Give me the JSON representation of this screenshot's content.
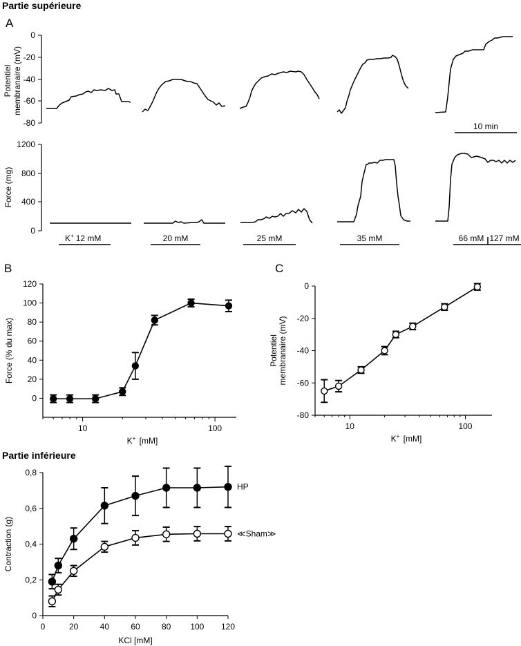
{
  "section_top": "Partie supérieure",
  "section_bottom": "Partie inférieure",
  "panel_labels": {
    "A": "A",
    "B": "B",
    "C": "C"
  },
  "panelA": {
    "vm_ylabel_line1": "Potentiel",
    "vm_ylabel_line2": "membranaire (mV)",
    "vm_ticks": [
      "0",
      "-20",
      "-40",
      "-60",
      "-80"
    ],
    "force_ylabel": "Force (mg)",
    "force_ticks": [
      "1200",
      "800",
      "400",
      "0"
    ],
    "scale_label": "10 min",
    "k_prefix": "K",
    "k_sup": "+",
    "conditions": [
      "12 mM",
      "20 mM",
      "25 mM",
      "35 mM",
      "66 mM",
      "127 mM"
    ]
  },
  "chart_data": [
    {
      "type": "line",
      "panel": "B",
      "ylabel": "Force (% du max)",
      "xlabel": "K+ [mM]",
      "xscale": "log",
      "xlim": [
        5,
        145
      ],
      "ylim": [
        -20,
        120
      ],
      "yticks": [
        0,
        20,
        40,
        60,
        80,
        100,
        120
      ],
      "xticks": [
        10,
        100
      ],
      "marker": "filled circle",
      "x": [
        6,
        8,
        12.5,
        20,
        25,
        35,
        66,
        127
      ],
      "y": [
        -0.5,
        -0.5,
        -0.5,
        7,
        34,
        82,
        100,
        97
      ],
      "error": [
        4,
        4,
        4,
        4,
        14,
        5,
        4,
        6
      ]
    },
    {
      "type": "line",
      "panel": "C",
      "ylabel": "Potentiel membranaire (mV)",
      "xlabel": "K+ [mM]",
      "xscale": "log",
      "xlim": [
        5,
        170
      ],
      "ylim": [
        -80,
        0
      ],
      "yticks": [
        0,
        -20,
        -40,
        -60,
        -80
      ],
      "xticks": [
        10,
        100
      ],
      "marker": "open circle",
      "x": [
        6,
        8,
        12.5,
        20,
        25,
        35,
        66,
        127
      ],
      "y": [
        -65,
        -62,
        -52,
        -40,
        -30,
        -25,
        -13,
        -0.5
      ],
      "error": [
        7,
        3.5,
        2,
        2.5,
        2,
        2,
        2,
        2
      ]
    },
    {
      "type": "line",
      "panel": "Partie inférieure",
      "ylabel": "Contraction (g)",
      "xlabel": "KCl [mM]",
      "xlim": [
        0,
        120
      ],
      "ylim": [
        0,
        0.8
      ],
      "yticks": [
        "0",
        "0,2",
        "0,4",
        "0,6",
        "0,8"
      ],
      "xticks": [
        0,
        20,
        40,
        60,
        80,
        100,
        120
      ],
      "series": [
        {
          "name": "HP",
          "marker": "filled circle",
          "x": [
            6,
            10,
            20,
            40,
            60,
            80,
            100,
            120
          ],
          "y": [
            0.19,
            0.28,
            0.43,
            0.615,
            0.67,
            0.715,
            0.715,
            0.72
          ],
          "error": [
            0.04,
            0.04,
            0.06,
            0.1,
            0.11,
            0.11,
            0.11,
            0.115
          ]
        },
        {
          "name": "≪Sham≫",
          "marker": "open circle",
          "x": [
            6,
            10,
            20,
            40,
            60,
            80,
            100,
            120
          ],
          "y": [
            0.08,
            0.145,
            0.25,
            0.385,
            0.435,
            0.455,
            0.458,
            0.458
          ],
          "error": [
            0.03,
            0.03,
            0.03,
            0.03,
            0.04,
            0.04,
            0.04,
            0.04
          ]
        }
      ]
    }
  ]
}
